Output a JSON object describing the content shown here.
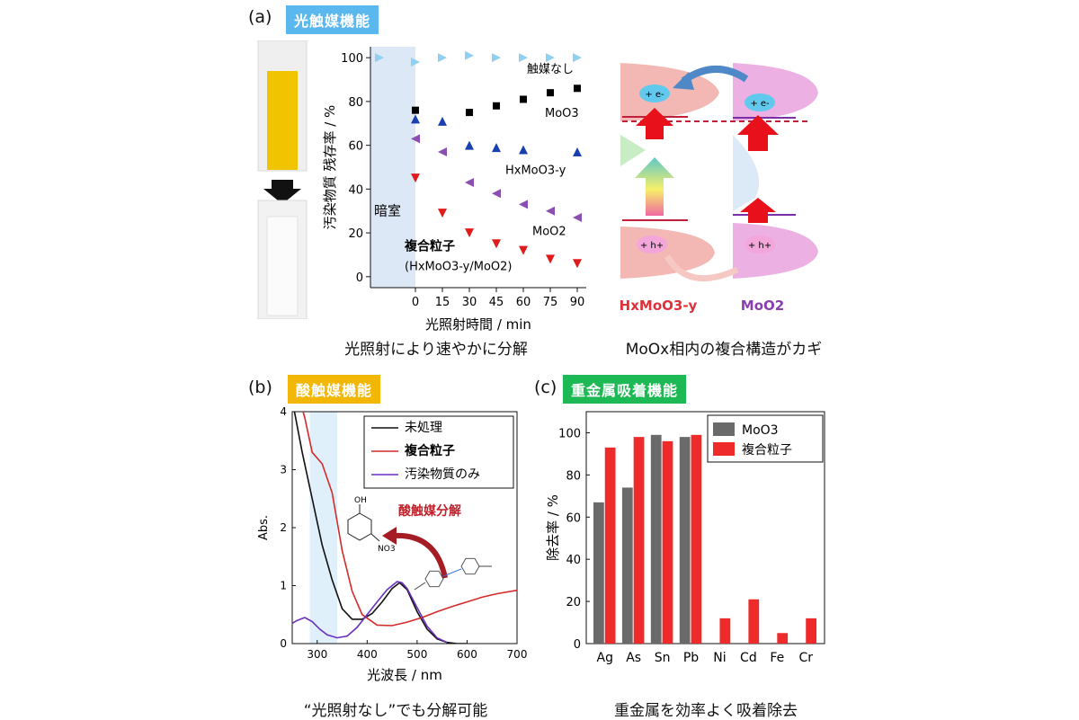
{
  "panels": {
    "a": {
      "label": "(a)",
      "tag": "光触媒機能",
      "caption_left": "光照射により速やかに分解",
      "caption_right": "MoOx相内の複合構造がカギ",
      "band_left": "HxMoO3-y",
      "band_right": "MoO2",
      "electron": "+ e-",
      "hole": "+ h+",
      "colors": {
        "hx": "#e0303a",
        "moo2": "#8a3fb0"
      }
    },
    "b": {
      "label": "(b)",
      "tag": "酸触媒機能",
      "caption": "“光照射なし”でも分解可能",
      "arrow_text": "酸触媒分解",
      "mol_oh": "OH",
      "mol_no3": "NO3"
    },
    "c": {
      "label": "(c)",
      "tag": "重金属吸着機能",
      "caption": "重金属を効率よく吸着除去"
    }
  },
  "chart_data": [
    {
      "id": "a",
      "type": "scatter",
      "xlabel": "光照射時間 / min",
      "ylabel": "汚染物質 残存率 / %",
      "xticks": [
        0,
        15,
        30,
        45,
        60,
        75,
        90
      ],
      "yticks": [
        0,
        20,
        40,
        60,
        80,
        100
      ],
      "xlim": [
        -25,
        95
      ],
      "ylim": [
        -5,
        105
      ],
      "dark_region": [
        -25,
        0
      ],
      "dark_label": "暗室",
      "composite_label": "複合粒子",
      "composite_sub": "(HxMoO3-y/MoO2)",
      "series": [
        {
          "name": "触媒なし",
          "marker": "tri-right",
          "color": "#8fcff2",
          "x": [
            -20,
            0,
            15,
            30,
            45,
            60,
            75,
            90
          ],
          "y": [
            100,
            98,
            100,
            101,
            100,
            100,
            100,
            100
          ]
        },
        {
          "name": "MoO3",
          "marker": "square",
          "color": "#000000",
          "x": [
            0,
            30,
            45,
            60,
            75,
            90
          ],
          "y": [
            76,
            75,
            78,
            81,
            84,
            86
          ]
        },
        {
          "name": "HxMoO3-y",
          "marker": "tri-up",
          "color": "#1a3fb0",
          "x": [
            0,
            15,
            30,
            45,
            60,
            90
          ],
          "y": [
            72,
            71,
            60,
            59,
            58,
            57
          ]
        },
        {
          "name": "MoO2",
          "marker": "tri-left",
          "color": "#8a4fb0",
          "x": [
            0,
            15,
            30,
            45,
            60,
            75,
            90
          ],
          "y": [
            63,
            57,
            43,
            38,
            33,
            30,
            27
          ]
        },
        {
          "name": "複合粒子",
          "marker": "tri-down",
          "color": "#e01b1b",
          "x": [
            0,
            15,
            30,
            45,
            60,
            75,
            90
          ],
          "y": [
            45,
            29,
            20,
            15,
            12,
            8,
            6
          ]
        }
      ]
    },
    {
      "id": "b",
      "type": "line",
      "xlabel": "光波長 / nm",
      "ylabel": "Abs.",
      "xlim": [
        250,
        700
      ],
      "ylim": [
        0,
        4
      ],
      "xticks": [
        300,
        400,
        500,
        600,
        700
      ],
      "yticks": [
        0,
        1,
        2,
        3,
        4
      ],
      "highlight": [
        285,
        340
      ],
      "legend": "top-right",
      "series": [
        {
          "name": "未処理",
          "color": "#111111",
          "x": [
            250,
            270,
            290,
            310,
            330,
            350,
            370,
            390,
            410,
            430,
            450,
            465,
            480,
            500,
            520,
            540,
            560,
            580,
            600
          ],
          "y": [
            4.2,
            3.3,
            2.5,
            1.7,
            1.1,
            0.6,
            0.42,
            0.42,
            0.52,
            0.72,
            0.95,
            1.05,
            0.93,
            0.55,
            0.25,
            0.08,
            0.02,
            0.0,
            0.0
          ]
        },
        {
          "name": "複合粒子",
          "color": "#d42a2a",
          "x": [
            250,
            265,
            275,
            290,
            310,
            330,
            350,
            370,
            390,
            420,
            450,
            480,
            510,
            540,
            570,
            600,
            630,
            660,
            700
          ],
          "y": [
            4.2,
            4.2,
            3.9,
            3.3,
            3.1,
            2.6,
            1.6,
            0.9,
            0.5,
            0.32,
            0.31,
            0.37,
            0.45,
            0.55,
            0.64,
            0.72,
            0.8,
            0.86,
            0.92
          ]
        },
        {
          "name": "汚染物質のみ",
          "color": "#6a2fc0",
          "x": [
            250,
            260,
            275,
            290,
            305,
            320,
            340,
            360,
            380,
            400,
            420,
            440,
            460,
            470,
            480,
            500,
            520,
            540,
            560
          ],
          "y": [
            0.35,
            0.4,
            0.45,
            0.38,
            0.25,
            0.15,
            0.1,
            0.13,
            0.28,
            0.5,
            0.72,
            0.93,
            1.07,
            1.05,
            0.95,
            0.62,
            0.3,
            0.1,
            0.02
          ]
        }
      ]
    },
    {
      "id": "c",
      "type": "bar",
      "ylabel": "除去率 / %",
      "categories": [
        "Ag",
        "As",
        "Sn",
        "Pb",
        "Ni",
        "Cd",
        "Fe",
        "Cr"
      ],
      "ylim": [
        0,
        110
      ],
      "yticks": [
        0,
        20,
        40,
        60,
        80,
        100
      ],
      "legend": "top-right",
      "series": [
        {
          "name": "MoO3",
          "color": "#6a6a6a",
          "values": [
            67,
            74,
            99,
            98,
            0,
            0,
            0,
            0
          ]
        },
        {
          "name": "複合粒子",
          "color": "#ee2a2a",
          "values": [
            93,
            98,
            96,
            99,
            12,
            21,
            5,
            12
          ]
        }
      ]
    }
  ]
}
